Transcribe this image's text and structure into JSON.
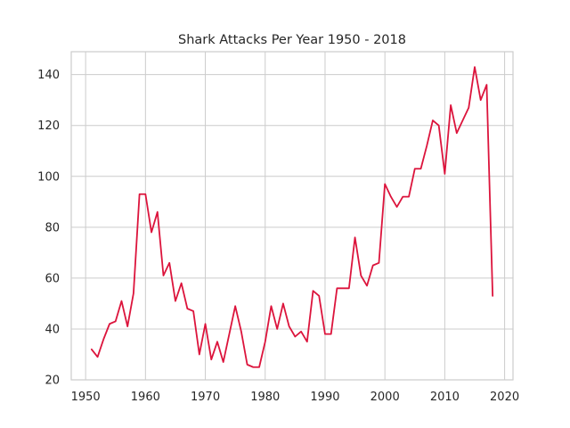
{
  "chart_data": {
    "type": "line",
    "title": "Shark Attacks Per Year 1950 - 2018",
    "xlabel": "",
    "ylabel": "",
    "xlim": [
      1947.6,
      2021.4
    ],
    "ylim": [
      20,
      149
    ],
    "x_ticks": [
      1950,
      1960,
      1970,
      1980,
      1990,
      2000,
      2010,
      2020
    ],
    "y_ticks": [
      20,
      40,
      60,
      80,
      100,
      120,
      140
    ],
    "grid": true,
    "series": [
      {
        "color": "#dc143c",
        "x": [
          1951,
          1952,
          1953,
          1954,
          1955,
          1956,
          1957,
          1958,
          1959,
          1960,
          1961,
          1962,
          1963,
          1964,
          1965,
          1966,
          1967,
          1968,
          1969,
          1970,
          1971,
          1972,
          1973,
          1974,
          1975,
          1976,
          1977,
          1978,
          1979,
          1980,
          1981,
          1982,
          1983,
          1984,
          1985,
          1986,
          1987,
          1988,
          1989,
          1990,
          1991,
          1992,
          1993,
          1994,
          1995,
          1996,
          1997,
          1998,
          1999,
          2000,
          2001,
          2002,
          2003,
          2004,
          2005,
          2006,
          2007,
          2008,
          2009,
          2010,
          2011,
          2012,
          2013,
          2014,
          2015,
          2016,
          2017,
          2018
        ],
        "y": [
          32,
          29,
          36,
          42,
          43,
          51,
          41,
          54,
          93,
          93,
          78,
          86,
          61,
          66,
          51,
          58,
          48,
          47,
          30,
          42,
          28,
          35,
          27,
          38,
          49,
          39,
          26,
          25,
          25,
          35,
          49,
          40,
          50,
          41,
          37,
          39,
          35,
          55,
          53,
          38,
          38,
          56,
          56,
          56,
          76,
          61,
          57,
          65,
          66,
          97,
          92,
          88,
          92,
          92,
          103,
          103,
          112,
          122,
          120,
          101,
          128,
          117,
          122,
          127,
          143,
          130,
          136,
          53
        ]
      }
    ]
  }
}
